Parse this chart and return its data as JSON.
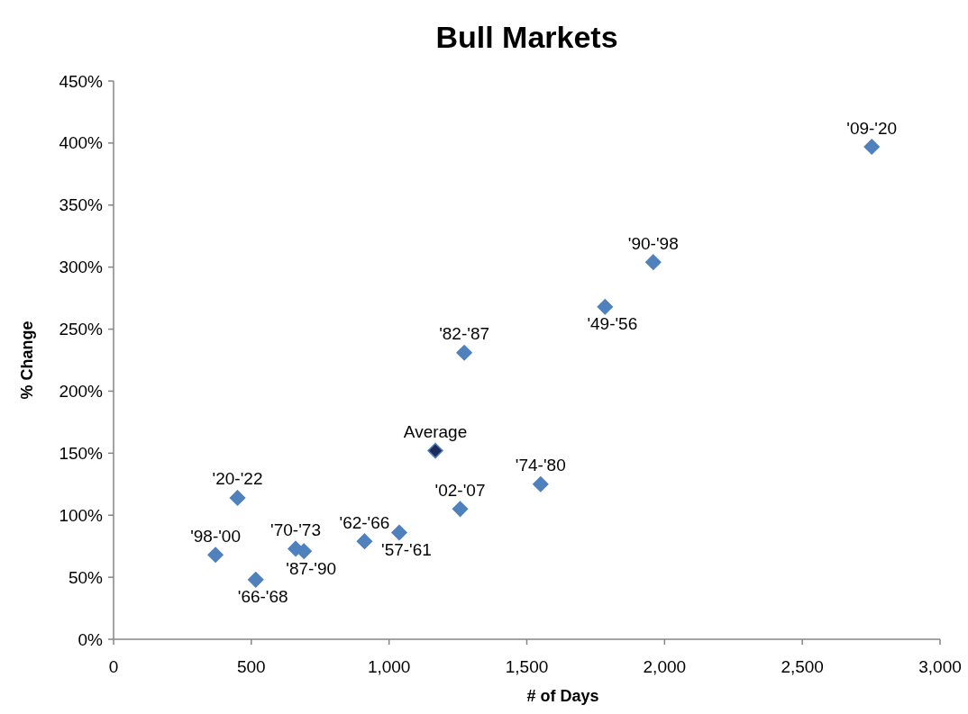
{
  "chart_data": {
    "type": "scatter",
    "title": "Bull Markets",
    "xlabel": "# of Days",
    "ylabel": "% Change",
    "xlim": [
      0,
      3000
    ],
    "xticks": [
      0,
      500,
      {
        "value": 1000,
        "label": "1,000"
      },
      {
        "value": 1500,
        "label": "1,500"
      },
      {
        "value": 2000,
        "label": "2,000"
      },
      {
        "value": 2500,
        "label": "2,500"
      },
      {
        "value": 3000,
        "label": "3,000"
      }
    ],
    "ylim": [
      0,
      450
    ],
    "yticks": [
      {
        "value": 0,
        "label": "0%"
      },
      {
        "value": 50,
        "label": "50%"
      },
      {
        "value": 100,
        "label": "100%"
      },
      {
        "value": 150,
        "label": "150%"
      },
      {
        "value": 200,
        "label": "200%"
      },
      {
        "value": 250,
        "label": "250%"
      },
      {
        "value": 300,
        "label": "300%"
      },
      {
        "value": 350,
        "label": "350%"
      },
      {
        "value": 400,
        "label": "400%"
      },
      {
        "value": 450,
        "label": "450%"
      }
    ],
    "grid": false,
    "marker": "diamond",
    "series": [
      {
        "name": "'98-'00",
        "color": "#4f81bd",
        "x": [
          370
        ],
        "values": [
          68
        ]
      },
      {
        "name": "'20-'22",
        "color": "#4f81bd",
        "x": [
          450
        ],
        "values": [
          114
        ]
      },
      {
        "name": "'66-'68",
        "color": "#4f81bd",
        "x": [
          516
        ],
        "values": [
          48
        ]
      },
      {
        "name": "'70-'73",
        "color": "#4f81bd",
        "x": [
          661
        ],
        "values": [
          73
        ]
      },
      {
        "name": "'87-'90",
        "color": "#4f81bd",
        "x": [
          691
        ],
        "values": [
          71
        ]
      },
      {
        "name": "'62-'66",
        "color": "#4f81bd",
        "x": [
          911
        ],
        "values": [
          79
        ]
      },
      {
        "name": "'57-'61",
        "color": "#4f81bd",
        "x": [
          1037
        ],
        "values": [
          86
        ]
      },
      {
        "name": "Average",
        "color": "#1f2a5c",
        "x": [
          1168
        ],
        "values": [
          152
        ]
      },
      {
        "name": "'02-'07",
        "color": "#4f81bd",
        "x": [
          1258
        ],
        "values": [
          105
        ]
      },
      {
        "name": "'82-'87",
        "color": "#4f81bd",
        "x": [
          1273
        ],
        "values": [
          231
        ]
      },
      {
        "name": "'74-'80",
        "color": "#4f81bd",
        "x": [
          1550
        ],
        "values": [
          125
        ]
      },
      {
        "name": "'49-'56",
        "color": "#4f81bd",
        "x": [
          1784
        ],
        "values": [
          268
        ]
      },
      {
        "name": "'90-'98",
        "color": "#4f81bd",
        "x": [
          1959
        ],
        "values": [
          304
        ]
      },
      {
        "name": "'09-'20",
        "color": "#4f81bd",
        "x": [
          2752
        ],
        "values": [
          397
        ]
      }
    ]
  }
}
